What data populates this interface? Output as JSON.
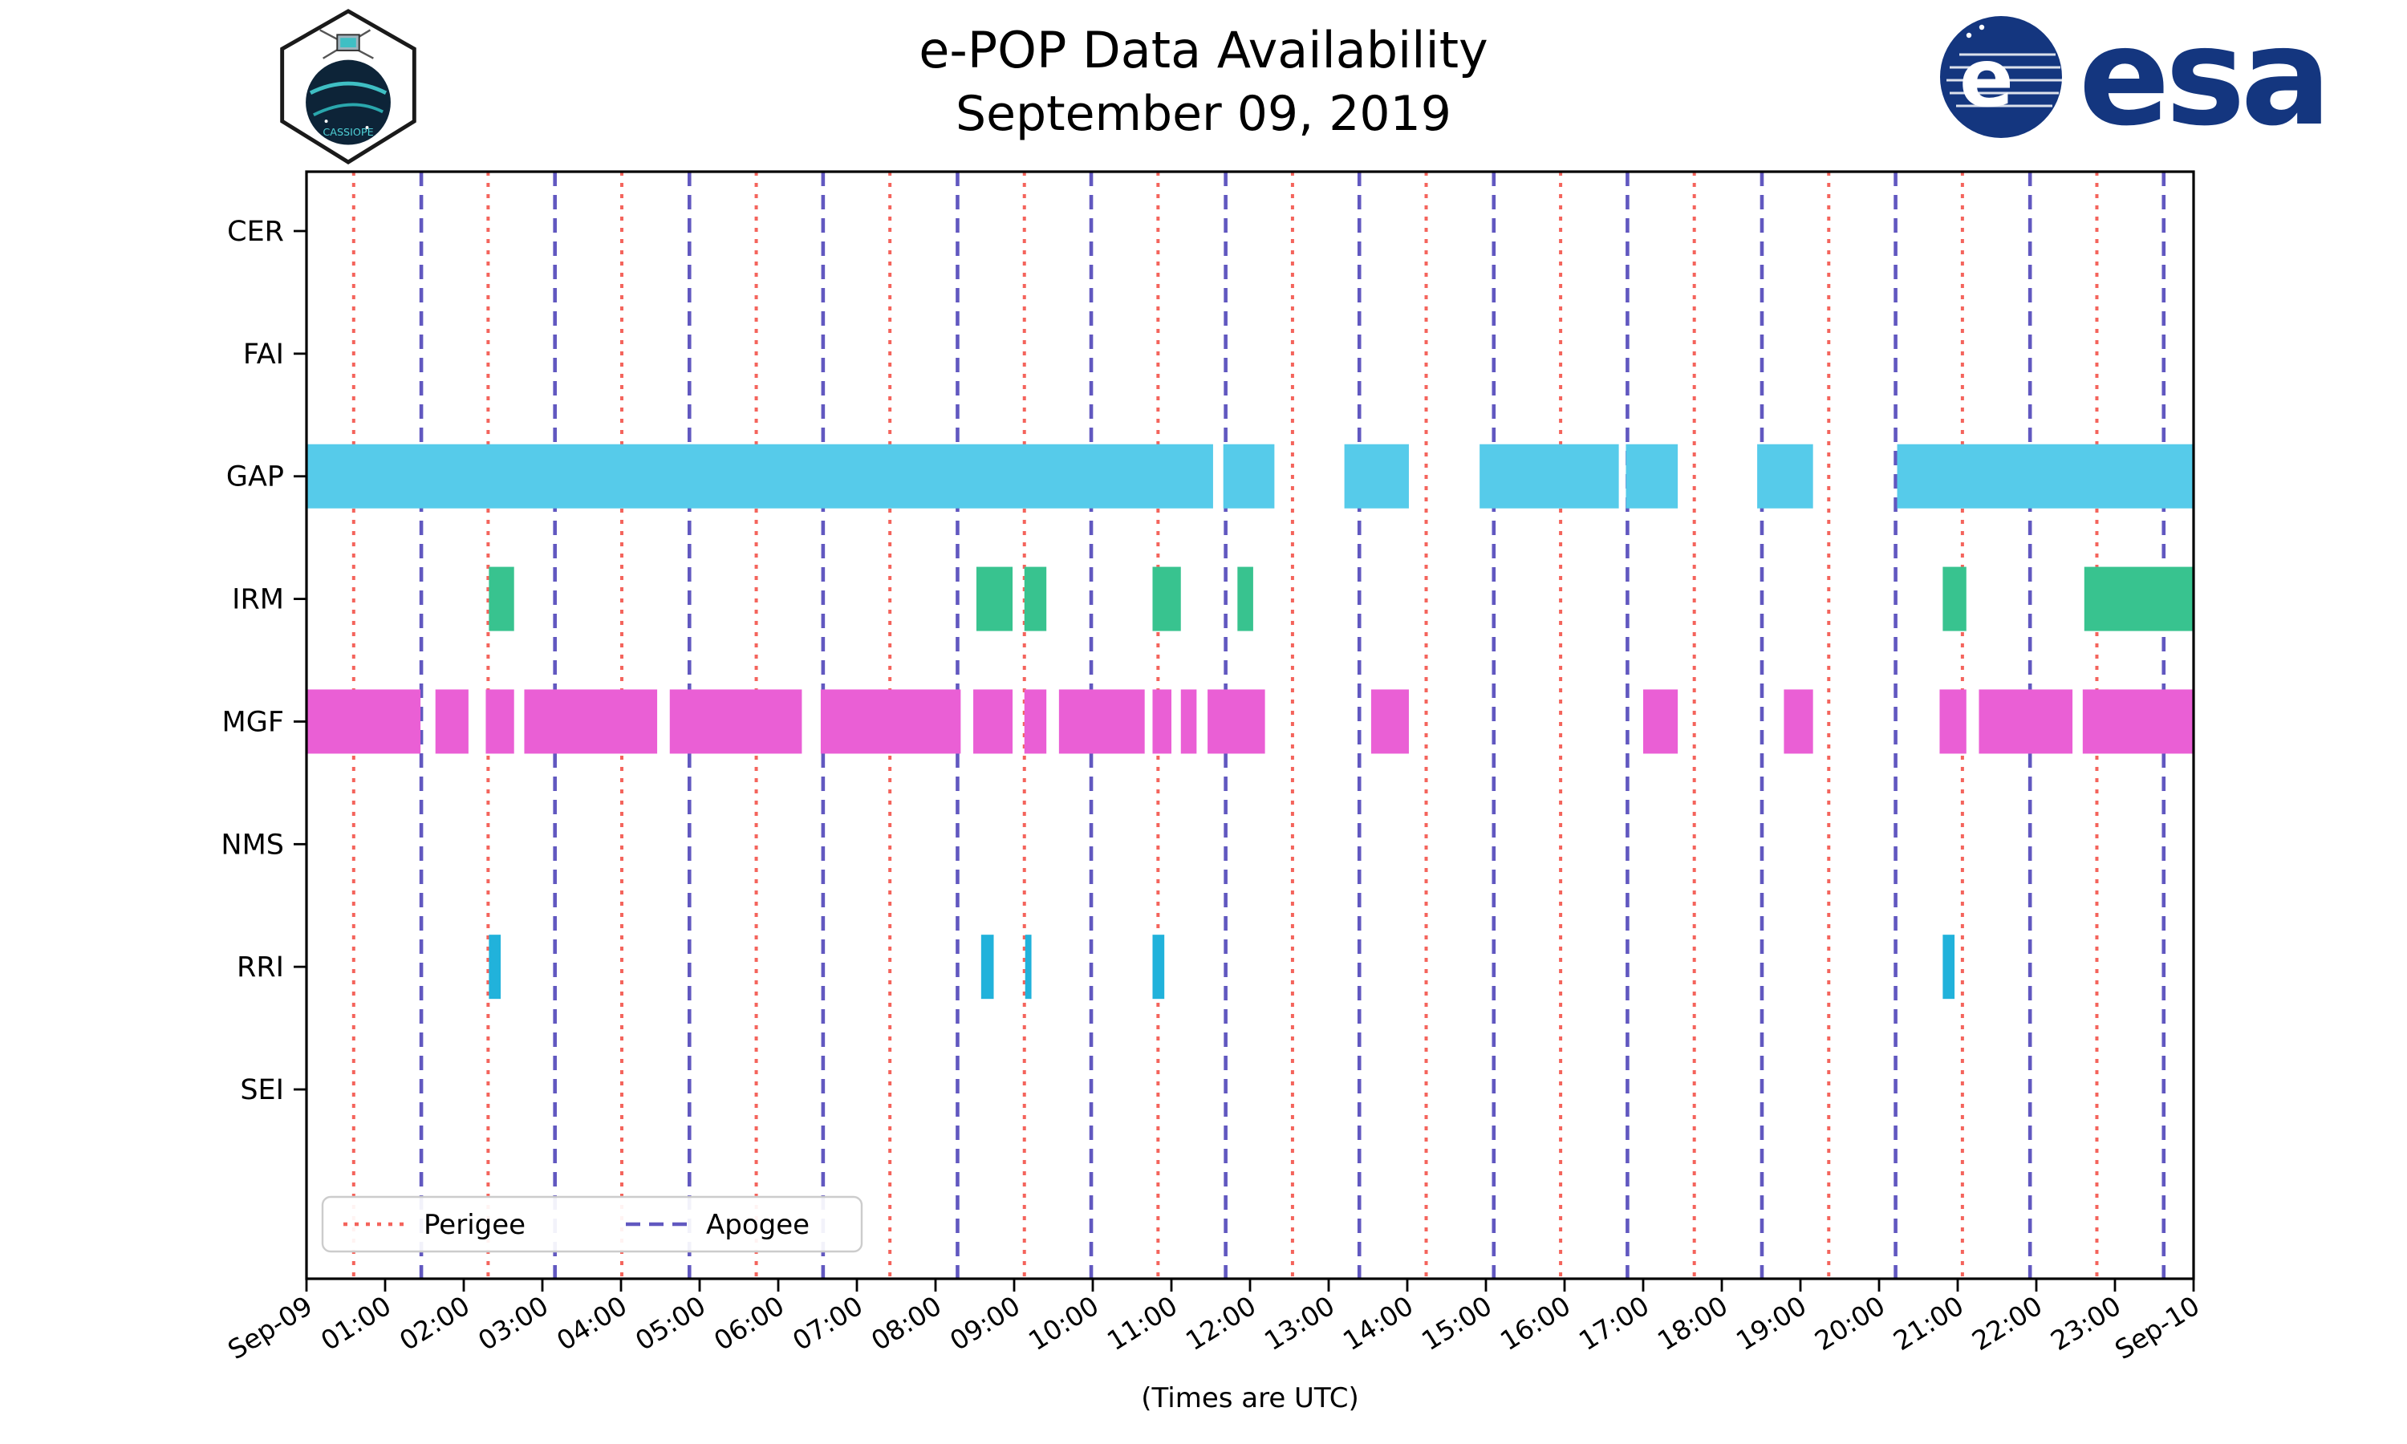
{
  "header": {
    "cassiope_text": "CASSIOPE",
    "esa_wordmark": "esa"
  },
  "chart_data": {
    "type": "timeline-availability",
    "title": "e-POP Data Availability",
    "subtitle": "September 09, 2019",
    "xlabel": "(Times are UTC)",
    "legend_position": "lower left",
    "x_axis": {
      "hours_span": 24,
      "tick_labels": [
        "Sep-09",
        "01:00",
        "02:00",
        "03:00",
        "04:00",
        "05:00",
        "06:00",
        "07:00",
        "08:00",
        "09:00",
        "10:00",
        "11:00",
        "12:00",
        "13:00",
        "14:00",
        "15:00",
        "16:00",
        "17:00",
        "18:00",
        "19:00",
        "20:00",
        "21:00",
        "22:00",
        "23:00",
        "Sep-10"
      ]
    },
    "instruments": [
      "CER",
      "FAI",
      "GAP",
      "IRM",
      "MGF",
      "NMS",
      "RRI",
      "SEI"
    ],
    "colors": {
      "CER": "#56CBEA",
      "FAI": "#56CBEA",
      "GAP": "#56CBEA",
      "IRM": "#38C38F",
      "MGF": "#EA5FD5",
      "NMS": "#56CBEA",
      "RRI": "#21B2DB",
      "SEI": "#56CBEA",
      "perigee": "#F4645C",
      "apogee": "#6158C0",
      "axis": "#000000",
      "legend_border": "#cccccc"
    },
    "bars": {
      "CER": [],
      "FAI": [],
      "GAP": [
        [
          0,
          11.53
        ],
        [
          11.66,
          12.31
        ],
        [
          13.2,
          14.02
        ],
        [
          14.92,
          16.69
        ],
        [
          16.78,
          17.44
        ],
        [
          18.45,
          19.16
        ],
        [
          20.23,
          24.0
        ]
      ],
      "IRM": [
        [
          2.32,
          2.64
        ],
        [
          8.52,
          8.98
        ],
        [
          9.13,
          9.41
        ],
        [
          10.76,
          11.12
        ],
        [
          11.84,
          12.04
        ],
        [
          20.81,
          21.11
        ],
        [
          22.61,
          24.0
        ]
      ],
      "MGF": [
        [
          0,
          1.45
        ],
        [
          1.64,
          2.06
        ],
        [
          2.28,
          2.64
        ],
        [
          2.77,
          4.46
        ],
        [
          4.62,
          6.3
        ],
        [
          6.54,
          8.32
        ],
        [
          8.48,
          8.98
        ],
        [
          9.13,
          9.41
        ],
        [
          9.57,
          10.66
        ],
        [
          10.76,
          11.0
        ],
        [
          11.12,
          11.32
        ],
        [
          11.46,
          12.19
        ],
        [
          13.54,
          14.02
        ],
        [
          17.0,
          17.44
        ],
        [
          18.79,
          19.16
        ],
        [
          20.77,
          21.11
        ],
        [
          21.27,
          22.46
        ],
        [
          22.59,
          24.0
        ]
      ],
      "NMS": [],
      "RRI": [
        [
          2.32,
          2.47
        ],
        [
          8.58,
          8.74
        ],
        [
          9.14,
          9.22
        ],
        [
          10.76,
          10.91
        ],
        [
          20.81,
          20.96
        ]
      ],
      "SEI": []
    },
    "events": {
      "perigee_hours": [
        0.6,
        2.31,
        4.01,
        5.72,
        7.42,
        9.13,
        10.83,
        12.54,
        14.24,
        15.95,
        17.65,
        19.36,
        21.06,
        22.77
      ],
      "apogee_hours": [
        1.46,
        3.16,
        4.87,
        6.57,
        8.28,
        9.98,
        11.69,
        13.39,
        15.1,
        16.8,
        18.51,
        20.21,
        21.92,
        23.62
      ]
    },
    "legend": [
      {
        "label": "Perigee",
        "style": "dotted",
        "color": "#F4645C"
      },
      {
        "label": "Apogee",
        "style": "dashed",
        "color": "#6158C0"
      }
    ]
  }
}
